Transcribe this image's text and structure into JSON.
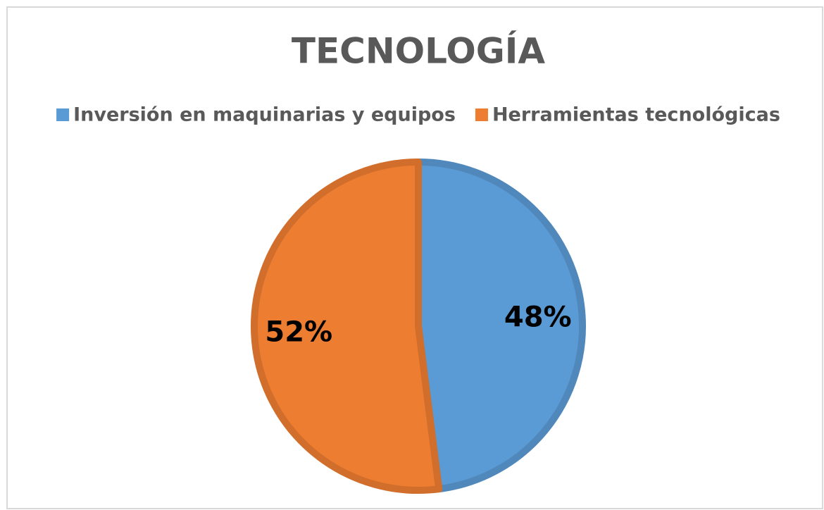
{
  "chart_data": {
    "type": "pie",
    "title": "TECNOLOGÍA",
    "categories": [
      "Inversión en maquinarias y equipos",
      "Herramientas tecnológicas"
    ],
    "values": [
      48,
      52
    ],
    "value_labels": [
      "48%",
      "52%"
    ],
    "colors": [
      "#5b9bd5",
      "#ed7d31"
    ],
    "legend": "top"
  }
}
